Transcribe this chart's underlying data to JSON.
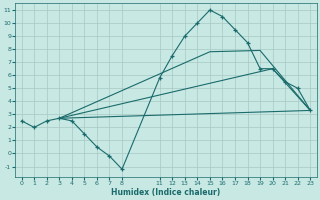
{
  "xlabel": "Humidex (Indice chaleur)",
  "background_color": "#c8e8e4",
  "grid_color": "#a8c8c4",
  "line_color": "#1a6b6b",
  "xlim": [
    -0.5,
    23.5
  ],
  "ylim": [
    -1.8,
    11.5
  ],
  "xticks": [
    0,
    1,
    2,
    3,
    4,
    5,
    6,
    7,
    8,
    11,
    12,
    13,
    14,
    15,
    16,
    17,
    18,
    19,
    20,
    21,
    22,
    23
  ],
  "yticks": [
    -1,
    0,
    1,
    2,
    3,
    4,
    5,
    6,
    7,
    8,
    9,
    10,
    11
  ],
  "line1_x": [
    0,
    1,
    2,
    3,
    4,
    5,
    6,
    7,
    8,
    11,
    12,
    13,
    14,
    15,
    16,
    17,
    18,
    19,
    20,
    21,
    22,
    23
  ],
  "line1_y": [
    2.5,
    2.0,
    2.5,
    2.7,
    2.5,
    1.5,
    0.5,
    -0.2,
    -1.2,
    5.8,
    7.5,
    9.0,
    10.0,
    11.0,
    10.5,
    9.5,
    8.5,
    6.5,
    6.5,
    5.5,
    5.0,
    3.3
  ],
  "line2_x": [
    3,
    23
  ],
  "line2_y": [
    2.7,
    3.3
  ],
  "line3_x": [
    3,
    20,
    23
  ],
  "line3_y": [
    2.7,
    6.5,
    3.3
  ],
  "line4_x": [
    3,
    15,
    19,
    23
  ],
  "line4_y": [
    2.7,
    7.8,
    7.9,
    3.3
  ]
}
